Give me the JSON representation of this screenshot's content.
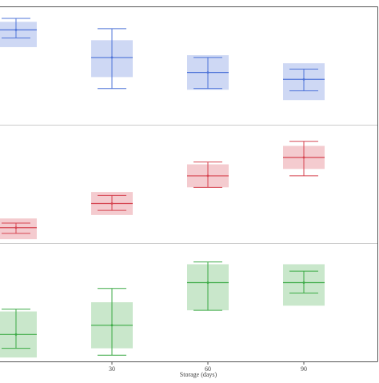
{
  "chart_data": {
    "type": "box",
    "xlabel": "Storage (days)",
    "x_ticks": [
      30,
      60,
      90
    ],
    "x_domain": [
      -5,
      113
    ],
    "colors": {
      "blue": "#4f74d8",
      "red": "#d64652",
      "green": "#3caa46",
      "axis": "#555555",
      "divider": "#cccccc",
      "tick_text": "#444444"
    },
    "panels": [
      {
        "color": "blue",
        "y_domain": [
          0,
          10
        ],
        "groups": [
          {
            "x": 0,
            "box_low": 6.6,
            "box_high": 8.8,
            "median": 8.1,
            "mean": 8.1,
            "whisker_low": 7.4,
            "whisker_high": 9.1
          },
          {
            "x": 30,
            "box_low": 4.0,
            "box_high": 7.2,
            "median": 5.7,
            "mean": 5.7,
            "whisker_low": 3.0,
            "whisker_high": 8.2
          },
          {
            "x": 60,
            "box_low": 2.9,
            "box_high": 5.9,
            "median": 4.4,
            "mean": 4.4,
            "whisker_low": 3.0,
            "whisker_high": 5.7
          },
          {
            "x": 90,
            "box_low": 2.0,
            "box_high": 5.2,
            "median": 3.8,
            "mean": 3.8,
            "whisker_low": 2.8,
            "whisker_high": 4.7
          }
        ]
      },
      {
        "color": "red",
        "y_domain": [
          0,
          10
        ],
        "groups": [
          {
            "x": 0,
            "box_low": 0.2,
            "box_high": 2.0,
            "median": 1.2,
            "mean": 1.2,
            "whisker_low": 0.7,
            "whisker_high": 1.6
          },
          {
            "x": 30,
            "box_low": 2.3,
            "box_high": 4.3,
            "median": 3.3,
            "mean": 3.3,
            "whisker_low": 2.7,
            "whisker_high": 4.0
          },
          {
            "x": 60,
            "box_low": 4.7,
            "box_high": 6.7,
            "median": 5.7,
            "mean": 5.7,
            "whisker_low": 4.7,
            "whisker_high": 6.9
          },
          {
            "x": 90,
            "box_low": 6.3,
            "box_high": 8.3,
            "median": 7.3,
            "mean": 7.3,
            "whisker_low": 5.7,
            "whisker_high": 8.7
          }
        ]
      },
      {
        "color": "green",
        "y_domain": [
          0,
          10
        ],
        "groups": [
          {
            "x": 0,
            "box_low": 0.2,
            "box_high": 4.2,
            "median": 2.2,
            "mean": 2.2,
            "whisker_low": 1.0,
            "whisker_high": 4.4
          },
          {
            "x": 30,
            "box_low": 1.0,
            "box_high": 5.0,
            "median": 3.0,
            "mean": 3.0,
            "whisker_low": 0.4,
            "whisker_high": 6.2
          },
          {
            "x": 60,
            "box_low": 4.3,
            "box_high": 8.3,
            "median": 6.7,
            "mean": 6.7,
            "whisker_low": 4.3,
            "whisker_high": 8.5
          },
          {
            "x": 90,
            "box_low": 4.7,
            "box_high": 8.3,
            "median": 6.7,
            "mean": 6.7,
            "whisker_low": 5.8,
            "whisker_high": 7.7
          }
        ]
      }
    ]
  }
}
